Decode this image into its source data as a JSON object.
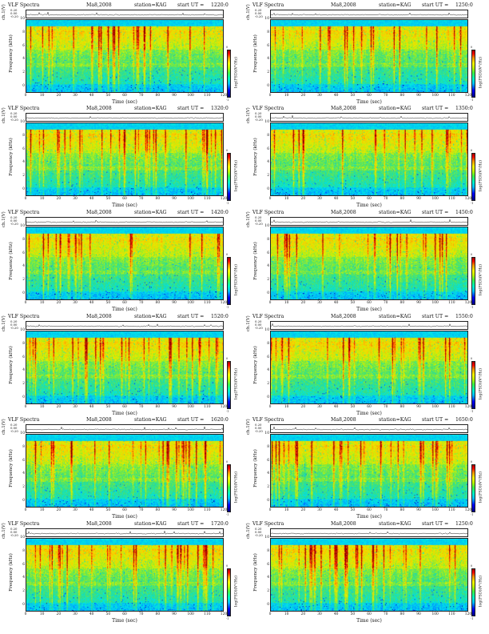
{
  "header": {
    "title": "VLF Spectra",
    "date": "Ma8,2008",
    "station": "station=KAG",
    "start_prefix": "start UT ="
  },
  "axes": {
    "waveform_label": "ch.1(V)",
    "waveform_ticks": [
      "0.20",
      "0.00",
      "-0.20"
    ],
    "freq_label": "Frequency (kHz)",
    "freq_ticks": [
      "0",
      "2",
      "4",
      "6",
      "8",
      "10"
    ],
    "time_label": "Time (sec)",
    "time_ticks": [
      "0",
      "10",
      "20",
      "30",
      "40",
      "50",
      "60",
      "70",
      "80",
      "90",
      "100",
      "110",
      "120"
    ],
    "colorbar_label": "log(PSD)(V²/Hz)",
    "colorbar_ticks": [
      "0",
      "-1"
    ]
  },
  "chart_data": [
    {
      "type": "heatmap",
      "start_ut": "1220:0",
      "x_range": [
        0,
        120
      ],
      "y_range": [
        0,
        10
      ],
      "xlabel": "Time (sec)",
      "ylabel": "Frequency (kHz)"
    },
    {
      "type": "heatmap",
      "start_ut": "1250:0",
      "x_range": [
        0,
        120
      ],
      "y_range": [
        0,
        10
      ],
      "xlabel": "Time (sec)",
      "ylabel": "Frequency (kHz)"
    },
    {
      "type": "heatmap",
      "start_ut": "1320:0",
      "x_range": [
        0,
        120
      ],
      "y_range": [
        0,
        10
      ],
      "xlabel": "Time (sec)",
      "ylabel": "Frequency (kHz)"
    },
    {
      "type": "heatmap",
      "start_ut": "1350:0",
      "x_range": [
        0,
        120
      ],
      "y_range": [
        0,
        10
      ],
      "xlabel": "Time (sec)",
      "ylabel": "Frequency (kHz)"
    },
    {
      "type": "heatmap",
      "start_ut": "1420:0",
      "x_range": [
        0,
        120
      ],
      "y_range": [
        0,
        10
      ],
      "xlabel": "Time (sec)",
      "ylabel": "Frequency (kHz)"
    },
    {
      "type": "heatmap",
      "start_ut": "1450:0",
      "x_range": [
        0,
        120
      ],
      "y_range": [
        0,
        10
      ],
      "xlabel": "Time (sec)",
      "ylabel": "Frequency (kHz)"
    },
    {
      "type": "heatmap",
      "start_ut": "1520:0",
      "x_range": [
        0,
        120
      ],
      "y_range": [
        0,
        10
      ],
      "xlabel": "Time (sec)",
      "ylabel": "Frequency (kHz)"
    },
    {
      "type": "heatmap",
      "start_ut": "1550:0",
      "x_range": [
        0,
        120
      ],
      "y_range": [
        0,
        10
      ],
      "xlabel": "Time (sec)",
      "ylabel": "Frequency (kHz)"
    },
    {
      "type": "heatmap",
      "start_ut": "1620:0",
      "x_range": [
        0,
        120
      ],
      "y_range": [
        0,
        10
      ],
      "xlabel": "Time (sec)",
      "ylabel": "Frequency (kHz)"
    },
    {
      "type": "heatmap",
      "start_ut": "1650:0",
      "x_range": [
        0,
        120
      ],
      "y_range": [
        0,
        10
      ],
      "xlabel": "Time (sec)",
      "ylabel": "Frequency (kHz)"
    },
    {
      "type": "heatmap",
      "start_ut": "1720:0",
      "x_range": [
        0,
        120
      ],
      "y_range": [
        0,
        10
      ],
      "xlabel": "Time (sec)",
      "ylabel": "Frequency (kHz)"
    },
    {
      "type": "heatmap",
      "start_ut": "1250:0",
      "x_range": [
        0,
        120
      ],
      "y_range": [
        0,
        10
      ],
      "xlabel": "Time (sec)",
      "ylabel": "Frequency (kHz)"
    }
  ]
}
